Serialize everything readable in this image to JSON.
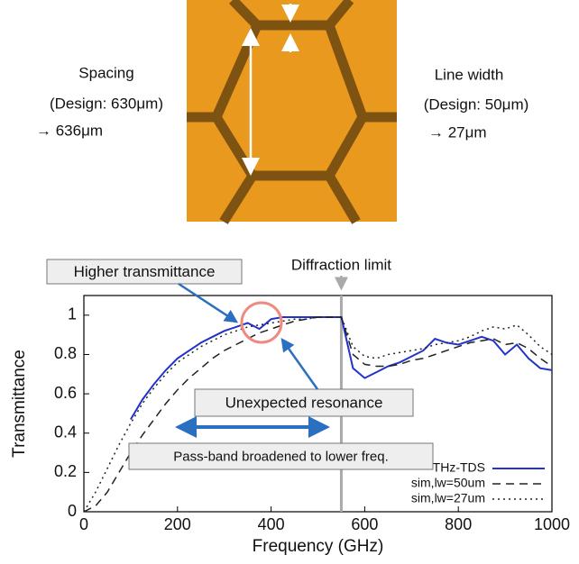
{
  "image": {
    "left_label": [
      "Spacing",
      "(Design: 630μm)",
      "→ 636μm"
    ],
    "right_label": [
      "Line width",
      "(Design: 50μm)",
      "→ 27μm"
    ]
  },
  "chart_data": {
    "type": "line",
    "x_label": "Frequency (GHz)",
    "y_label": "Transmittance",
    "x": [
      0,
      25,
      50,
      75,
      100,
      125,
      150,
      175,
      200,
      225,
      250,
      275,
      300,
      325,
      350,
      375,
      400,
      425,
      450,
      475,
      500,
      525,
      550,
      575,
      600,
      625,
      650,
      675,
      700,
      725,
      750,
      775,
      800,
      825,
      850,
      875,
      900,
      925,
      950,
      975,
      1000
    ],
    "series": [
      {
        "name": "THz-TDS",
        "color": "#2233cc",
        "style": "solid",
        "values": [
          null,
          null,
          null,
          null,
          0.47,
          0.57,
          0.65,
          0.72,
          0.78,
          0.82,
          0.86,
          0.89,
          0.92,
          0.94,
          0.96,
          0.93,
          0.98,
          0.99,
          0.99,
          0.99,
          0.99,
          0.99,
          0.99,
          0.73,
          0.68,
          0.71,
          0.74,
          0.76,
          0.79,
          0.82,
          0.88,
          0.86,
          0.85,
          0.87,
          0.89,
          0.87,
          0.8,
          0.85,
          0.78,
          0.73,
          0.72
        ]
      },
      {
        "name": "sim,lw=50um",
        "color": "#222222",
        "style": "dashed",
        "values": [
          0,
          0.03,
          0.1,
          0.2,
          0.3,
          0.39,
          0.47,
          0.55,
          0.62,
          0.68,
          0.73,
          0.78,
          0.82,
          0.85,
          0.88,
          0.91,
          0.93,
          0.95,
          0.97,
          0.98,
          0.99,
          0.99,
          0.99,
          0.8,
          0.75,
          0.74,
          0.74,
          0.75,
          0.77,
          0.78,
          0.8,
          0.82,
          0.84,
          0.86,
          0.87,
          0.88,
          0.85,
          0.86,
          0.83,
          0.78,
          0.74
        ]
      },
      {
        "name": "sim,lw=27um",
        "color": "#222222",
        "style": "dotted",
        "values": [
          0,
          0.1,
          0.22,
          0.34,
          0.45,
          0.55,
          0.63,
          0.7,
          0.76,
          0.8,
          0.84,
          0.87,
          0.9,
          0.92,
          0.94,
          0.95,
          0.96,
          0.97,
          0.98,
          0.98,
          0.99,
          0.99,
          0.99,
          0.84,
          0.79,
          0.78,
          0.8,
          0.81,
          0.82,
          0.83,
          0.85,
          0.86,
          0.87,
          0.89,
          0.92,
          0.94,
          0.93,
          0.95,
          0.9,
          0.84,
          0.8
        ]
      }
    ],
    "xlim": [
      0,
      1000
    ],
    "xticks": [
      0,
      200,
      400,
      600,
      800,
      1000
    ],
    "ylim": [
      0,
      1.1
    ],
    "yticks": [
      0,
      0.2,
      0.4,
      0.6,
      0.8,
      1
    ],
    "vline": {
      "x": 550,
      "label": "Diffraction limit",
      "color": "#aaaaaa"
    },
    "annotations": [
      "Higher transmittance",
      "Unexpected resonance",
      "Pass-band  broadened to lower freq."
    ],
    "legend": "lower right"
  }
}
